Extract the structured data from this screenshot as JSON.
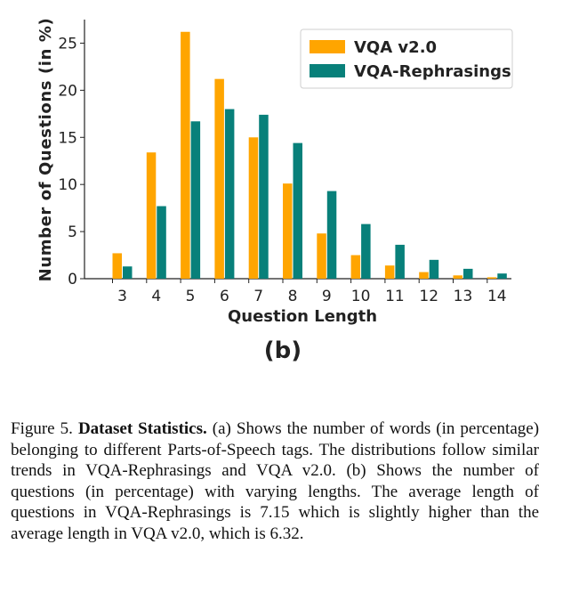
{
  "chart_data": {
    "type": "bar",
    "categories": [
      "3",
      "4",
      "5",
      "6",
      "7",
      "8",
      "9",
      "10",
      "11",
      "12",
      "13",
      "14"
    ],
    "series": [
      {
        "name": "VQA v2.0",
        "color": "#FFA500",
        "values": [
          2.7,
          13.4,
          26.2,
          21.2,
          15.0,
          10.1,
          4.8,
          2.5,
          1.4,
          0.7,
          0.35,
          0.15
        ]
      },
      {
        "name": "VQA-Rephrasings",
        "color": "#08807A",
        "values": [
          1.3,
          7.7,
          16.7,
          18.0,
          17.4,
          14.4,
          9.3,
          5.8,
          3.6,
          2.0,
          1.05,
          0.55
        ]
      }
    ],
    "xlabel": "Question Length",
    "ylabel": "Number of Questions (in %)",
    "yticks": [
      "0",
      "5",
      "10",
      "15",
      "20",
      "25"
    ],
    "ylim": [
      0,
      27.5
    ],
    "legend_position": "top-right",
    "grid": false,
    "panel_label": "(b)"
  },
  "caption": {
    "figure_label": "Figure 5.",
    "bold_title": "Dataset Statistics.",
    "text": "(a) Shows the number of words (in percentage) belonging to different Parts-of-Speech tags. The distributions follow similar trends in VQA-Rephrasings and VQA v2.0. (b) Shows the number of questions (in percentage) with varying lengths. The average length of questions in VQA-Rephrasings is 7.15 which is slightly higher than the average length in VQA v2.0, which is 6.32."
  }
}
